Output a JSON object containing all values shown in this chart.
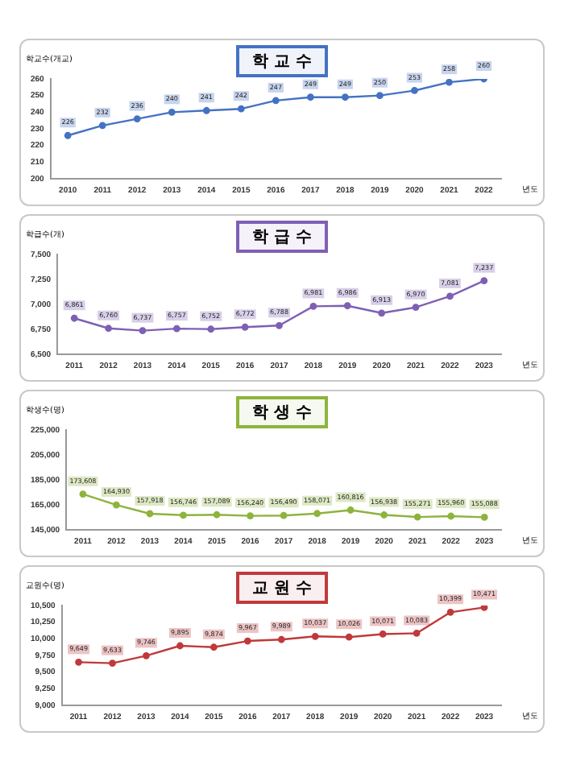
{
  "chart_data": [
    {
      "type": "line",
      "title": "학 교 수",
      "ylabel": "학교수(개교)",
      "xlabel": "년도",
      "categories": [
        "2010",
        "2011",
        "2012",
        "2013",
        "2014",
        "2015",
        "2016",
        "2017",
        "2018",
        "2019",
        "2020",
        "2021",
        "2022"
      ],
      "series": [
        {
          "color": "#4472c4",
          "values": [
            226,
            232,
            236,
            240,
            241,
            242,
            247,
            249,
            249,
            250,
            253,
            258,
            260
          ]
        }
      ],
      "ylim": [
        200,
        260
      ],
      "yticks": [
        200,
        210,
        220,
        230,
        240,
        250,
        260
      ],
      "marker": "circle",
      "data_labels": true
    },
    {
      "type": "line",
      "title": "학 급 수",
      "ylabel": "학급수(개)",
      "xlabel": "년도",
      "categories": [
        "2011",
        "2012",
        "2013",
        "2014",
        "2015",
        "2016",
        "2017",
        "2018",
        "2019",
        "2020",
        "2021",
        "2022",
        "2023"
      ],
      "series": [
        {
          "color": "#7f5fb4",
          "values": [
            6861,
            6760,
            6737,
            6757,
            6752,
            6772,
            6788,
            6981,
            6986,
            6913,
            6970,
            7081,
            7237
          ],
          "value_labels": [
            "6,861",
            "6,760",
            "6,737",
            "6,757",
            "6,752",
            "6,772",
            "6,788",
            "6,981",
            "6,986",
            "6,913",
            "6,970",
            "7,081",
            "7,237"
          ]
        }
      ],
      "ylim": [
        6500,
        7500
      ],
      "yticks": [
        {
          "value": 6500,
          "label": "6,500"
        },
        {
          "value": 6750,
          "label": "6,750"
        },
        {
          "value": 7000,
          "label": "7,000"
        },
        {
          "value": 7250,
          "label": "7,250"
        },
        {
          "value": 7500,
          "label": "7,500"
        }
      ],
      "marker": "circle"
    },
    {
      "type": "line",
      "title": "학 생 수",
      "ylabel": "학생수(명)",
      "xlabel": "년도",
      "categories": [
        "2011",
        "2012",
        "2013",
        "2014",
        "2015",
        "2016",
        "2017",
        "2018",
        "2019",
        "2020",
        "2021",
        "2022",
        "2023"
      ],
      "series": [
        {
          "color": "#8db43c",
          "values": [
            173608,
            164930,
            157918,
            156746,
            157089,
            156240,
            156490,
            158071,
            160816,
            156938,
            155271,
            155960,
            155088
          ],
          "value_labels": [
            "173,608",
            "164,930",
            "157,918",
            "156,746",
            "157,089",
            "156,240",
            "156,490",
            "158,071",
            "160,816",
            "156,938",
            "155,271",
            "155,960",
            "155,088"
          ]
        }
      ],
      "ylim": [
        145000,
        225000
      ],
      "yticks": [
        {
          "value": 145000,
          "label": "145,000"
        },
        {
          "value": 165000,
          "label": "165,000"
        },
        {
          "value": 185000,
          "label": "185,000"
        },
        {
          "value": 205000,
          "label": "205,000"
        },
        {
          "value": 225000,
          "label": "225,000"
        }
      ],
      "marker": "circle"
    },
    {
      "type": "line",
      "title": "교 원 수",
      "ylabel": "교원수(명)",
      "xlabel": "년도",
      "categories": [
        "2011",
        "2012",
        "2013",
        "2014",
        "2015",
        "2016",
        "2017",
        "2018",
        "2019",
        "2020",
        "2021",
        "2022",
        "2023"
      ],
      "series": [
        {
          "color": "#c0393b",
          "values": [
            9649,
            9633,
            9746,
            9895,
            9874,
            9967,
            9989,
            10037,
            10026,
            10071,
            10083,
            10399,
            10471
          ],
          "value_labels": [
            "9,649",
            "9,633",
            "9,746",
            "9,895",
            "9,874",
            "9,967",
            "9,989",
            "10,037",
            "10,026",
            "10,071",
            "10,083",
            "10,399",
            "10,471"
          ]
        }
      ],
      "ylim": [
        9000,
        10500
      ],
      "yticks": [
        {
          "value": 9000,
          "label": "9,000"
        },
        {
          "value": 9250,
          "label": "9,250"
        },
        {
          "value": 9500,
          "label": "9,500"
        },
        {
          "value": 9750,
          "label": "9,750"
        },
        {
          "value": 10000,
          "label": "10,000"
        },
        {
          "value": 10250,
          "label": "10,250"
        },
        {
          "value": 10500,
          "label": "10,500"
        }
      ],
      "marker": "circle"
    }
  ]
}
